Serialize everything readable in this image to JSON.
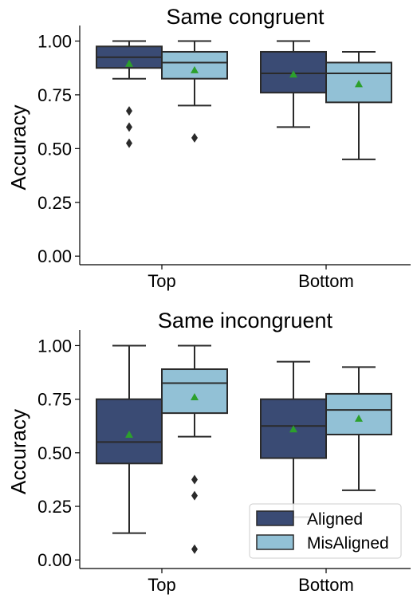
{
  "colors": {
    "Aligned": "#3a4b74",
    "MisAligned": "#92c1d6",
    "mean_marker": "#2ca02c",
    "line": "#2a2a2a"
  },
  "legend": {
    "placement": "lower-right",
    "items": [
      "Aligned",
      "MisAligned"
    ]
  },
  "chart_data": [
    {
      "type": "box",
      "title": "Same congruent",
      "ylabel": "Accuracy",
      "xlabel": "",
      "ylim": [
        -0.04,
        1.05
      ],
      "yticks": [
        "0.00",
        "0.25",
        "0.50",
        "0.75",
        "1.00"
      ],
      "categories": [
        "Top",
        "Bottom"
      ],
      "series": [
        {
          "name": "Aligned",
          "boxes": [
            {
              "whisker_low": 0.825,
              "q1": 0.875,
              "median": 0.925,
              "q3": 0.975,
              "whisker_high": 1.0,
              "mean": 0.895,
              "outliers": [
                0.675,
                0.6,
                0.525
              ]
            },
            {
              "whisker_low": 0.6,
              "q1": 0.76,
              "median": 0.85,
              "q3": 0.95,
              "whisker_high": 1.0,
              "mean": 0.845,
              "outliers": []
            }
          ]
        },
        {
          "name": "MisAligned",
          "boxes": [
            {
              "whisker_low": 0.7,
              "q1": 0.825,
              "median": 0.9,
              "q3": 0.95,
              "whisker_high": 1.0,
              "mean": 0.865,
              "outliers": [
                0.55
              ]
            },
            {
              "whisker_low": 0.45,
              "q1": 0.715,
              "median": 0.85,
              "q3": 0.9,
              "whisker_high": 0.95,
              "mean": 0.8,
              "outliers": []
            }
          ]
        }
      ]
    },
    {
      "type": "box",
      "title": "Same incongruent",
      "ylabel": "Accuracy",
      "xlabel": "",
      "ylim": [
        -0.04,
        1.05
      ],
      "yticks": [
        "0.00",
        "0.25",
        "0.50",
        "0.75",
        "1.00"
      ],
      "categories": [
        "Top",
        "Bottom"
      ],
      "series": [
        {
          "name": "Aligned",
          "boxes": [
            {
              "whisker_low": 0.125,
              "q1": 0.45,
              "median": 0.55,
              "q3": 0.75,
              "whisker_high": 1.0,
              "mean": 0.585,
              "outliers": []
            },
            {
              "whisker_low": 0.2,
              "q1": 0.475,
              "median": 0.625,
              "q3": 0.75,
              "whisker_high": 0.925,
              "mean": 0.61,
              "outliers": []
            }
          ]
        },
        {
          "name": "MisAligned",
          "boxes": [
            {
              "whisker_low": 0.575,
              "q1": 0.685,
              "median": 0.825,
              "q3": 0.89,
              "whisker_high": 1.0,
              "mean": 0.76,
              "outliers": [
                0.375,
                0.3,
                0.05
              ]
            },
            {
              "whisker_low": 0.325,
              "q1": 0.585,
              "median": 0.7,
              "q3": 0.775,
              "whisker_high": 0.9,
              "mean": 0.66,
              "outliers": []
            }
          ]
        }
      ]
    }
  ]
}
